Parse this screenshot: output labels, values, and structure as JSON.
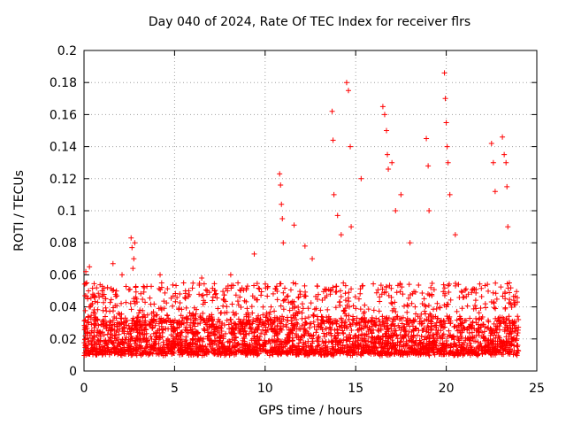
{
  "chart_data": {
    "type": "scatter",
    "title": "Day 040 of 2024, Rate Of TEC Index for receiver flrs",
    "xlabel": "GPS time / hours",
    "ylabel": "ROTI / TECUs",
    "xlim": [
      0,
      25
    ],
    "ylim": [
      0,
      0.2
    ],
    "xticks": [
      "0",
      "5",
      "10",
      "15",
      "20",
      "25"
    ],
    "yticks": [
      "0",
      "0.02",
      "0.04",
      "0.06",
      "0.08",
      "0.1",
      "0.12",
      "0.14",
      "0.16",
      "0.18",
      "0.2"
    ],
    "grid": true,
    "marker": "+",
    "color": "#ff0000",
    "baseline_range": [
      0.005,
      0.035
    ],
    "series": [
      {
        "x": [
          0.1,
          0.15,
          0.2,
          0.25,
          0.3,
          0.35,
          1.0,
          1.2,
          1.6,
          2.1,
          2.6,
          2.65,
          2.7,
          2.75,
          2.8,
          4.2,
          5.5,
          5.6,
          6.5,
          7.2,
          8.1,
          8.5,
          9.4,
          10.8,
          10.85,
          10.9,
          10.95,
          11.0,
          11.6,
          12.2,
          12.6,
          13.7,
          13.75,
          13.8,
          14.0,
          14.2,
          14.5,
          14.6,
          14.7,
          14.75,
          15.3,
          16.5,
          16.6,
          16.7,
          16.75,
          16.8,
          17.0,
          17.2,
          17.5,
          18.0,
          18.9,
          19.0,
          19.05,
          19.9,
          19.95,
          20.0,
          20.05,
          20.1,
          20.2,
          20.5,
          22.5,
          22.6,
          22.7,
          23.1,
          23.2,
          23.3,
          23.35,
          23.4
        ],
        "y": [
          0.062,
          0.055,
          0.045,
          0.05,
          0.065,
          0.04,
          0.05,
          0.045,
          0.067,
          0.06,
          0.083,
          0.077,
          0.064,
          0.07,
          0.08,
          0.06,
          0.055,
          0.05,
          0.058,
          0.05,
          0.06,
          0.055,
          0.073,
          0.123,
          0.116,
          0.104,
          0.095,
          0.08,
          0.091,
          0.078,
          0.07,
          0.162,
          0.144,
          0.11,
          0.097,
          0.085,
          0.18,
          0.175,
          0.14,
          0.09,
          0.12,
          0.165,
          0.16,
          0.15,
          0.135,
          0.126,
          0.13,
          0.1,
          0.11,
          0.08,
          0.145,
          0.128,
          0.1,
          0.186,
          0.17,
          0.155,
          0.14,
          0.13,
          0.11,
          0.085,
          0.142,
          0.13,
          0.112,
          0.146,
          0.135,
          0.13,
          0.115,
          0.09
        ]
      }
    ]
  }
}
